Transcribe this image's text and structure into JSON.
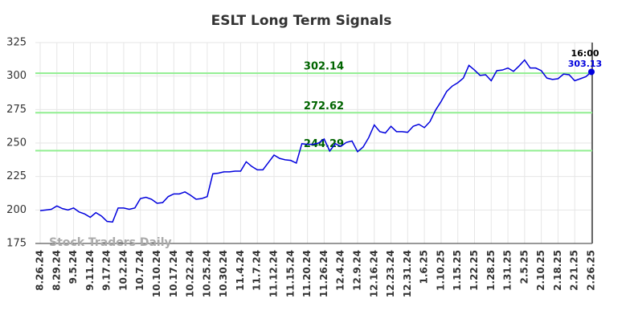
{
  "chart_data": {
    "type": "line",
    "title": "ESLT Long Term Signals",
    "watermark": "Stock Traders Daily",
    "last_label": "16:00",
    "categories": [
      "8.26.24",
      null,
      null,
      "8.29.24",
      null,
      null,
      "9.5.24",
      null,
      null,
      "9.11.24",
      null,
      null,
      "9.17.24",
      null,
      null,
      "10.2.24",
      null,
      null,
      "10.7.24",
      null,
      null,
      "10.10.24",
      null,
      null,
      "10.17.24",
      null,
      null,
      "10.22.24",
      null,
      null,
      "10.25.24",
      null,
      null,
      "10.30.24",
      null,
      null,
      "11.4.24",
      null,
      null,
      "11.7.24",
      null,
      null,
      "11.12.24",
      null,
      null,
      "11.15.24",
      null,
      null,
      "11.20.24",
      null,
      null,
      "11.26.24",
      null,
      null,
      "12.4.24",
      null,
      null,
      "12.9.24",
      null,
      null,
      "12.16.24",
      null,
      null,
      "12.23.24",
      null,
      null,
      "12.31.24",
      null,
      null,
      "1.6.25",
      null,
      null,
      "1.10.25",
      null,
      null,
      "1.15.25",
      null,
      null,
      "1.22.25",
      null,
      null,
      "1.28.25",
      null,
      null,
      "1.31.25",
      null,
      null,
      "2.5.25",
      null,
      null,
      "2.10.25",
      null,
      null,
      "2.18.25",
      null,
      null,
      "2.21.25",
      null,
      null,
      "2.26.25"
    ],
    "series": [
      {
        "color": "#0000dd",
        "values": [
          199.5,
          200,
          200.5,
          203,
          201,
          200,
          201.5,
          198.5,
          197,
          194.5,
          198,
          195.5,
          191.5,
          191,
          201.5,
          201.5,
          200.5,
          201.5,
          208.5,
          209.5,
          208,
          205,
          205.5,
          210,
          212,
          212,
          213.5,
          211,
          208,
          208.5,
          210,
          227,
          227.5,
          228.5,
          228.5,
          229,
          229,
          236,
          232.5,
          230,
          230,
          235.5,
          241,
          238.5,
          237.5,
          237,
          235,
          249.5,
          249,
          249,
          250,
          253,
          244,
          249.5,
          247.5,
          250.5,
          251.5,
          243.5,
          247,
          254,
          263.5,
          258.5,
          257.5,
          262.5,
          258.5,
          258.5,
          258,
          262.5,
          264,
          261.5,
          266,
          274.5,
          281,
          288.5,
          292.5,
          295,
          298.5,
          308,
          304.5,
          300.5,
          301,
          296.5,
          304,
          304.5,
          306,
          303.5,
          307.5,
          312,
          306,
          306,
          304,
          298.5,
          297.5,
          298,
          301.5,
          301,
          296.5,
          298,
          299.5,
          303.13
        ]
      }
    ],
    "hlines": [
      {
        "value": 302.14,
        "color": "#90ee90",
        "text_color": "#006400"
      },
      {
        "value": 272.62,
        "color": "#90ee90",
        "text_color": "#006400"
      },
      {
        "value": 244.29,
        "color": "#90ee90",
        "text_color": "#006400"
      }
    ],
    "ylim": [
      175,
      325
    ],
    "yticks": [
      175,
      200,
      225,
      250,
      275,
      300,
      325
    ],
    "grid": true
  }
}
